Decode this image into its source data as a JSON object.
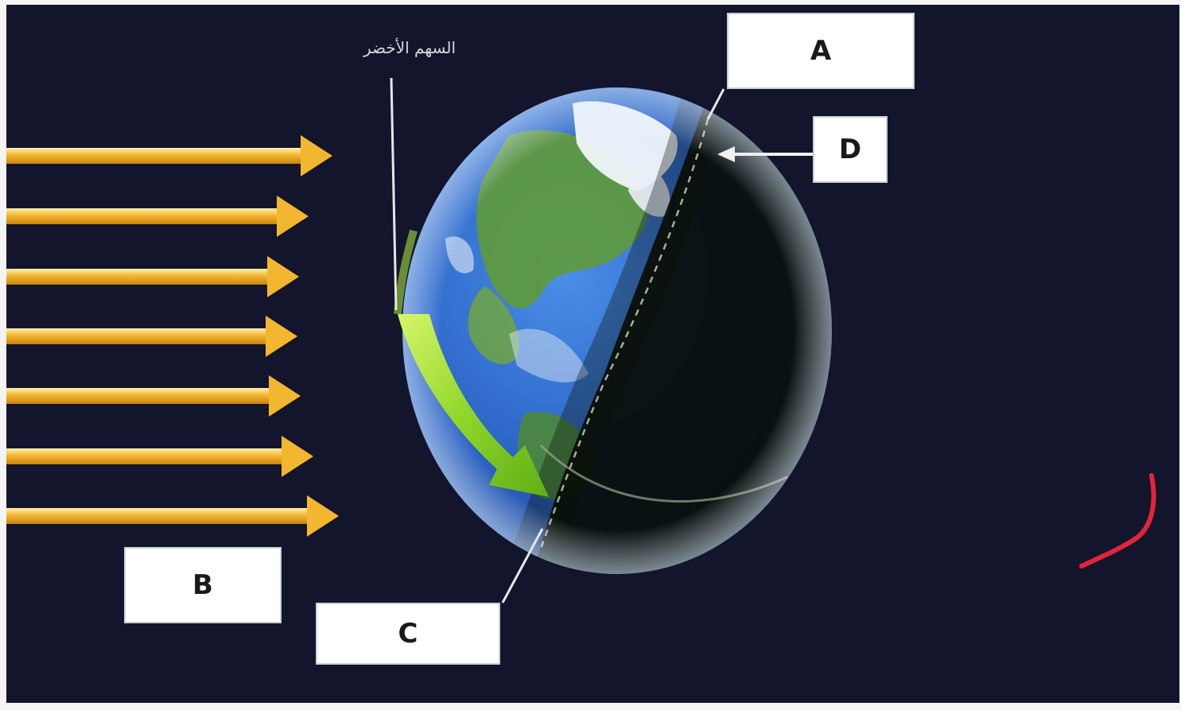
{
  "labels": {
    "a": "A",
    "b": "B",
    "c": "C",
    "d": "D"
  },
  "caption": "السهم الأخضر",
  "icons": {
    "sun_rays": "arrow-right-icon",
    "rotation": "curved-arrow-icon",
    "globe": "earth-icon",
    "annotation": "check-mark-icon"
  },
  "colors": {
    "background": "#12152b",
    "sun_ray": "#f0b22a",
    "green_arrow": "#8fd62a",
    "ocean": "#2f6fd0",
    "land": "#5f9a3a",
    "night": "#0b1208",
    "annotation": "#e3243b"
  }
}
